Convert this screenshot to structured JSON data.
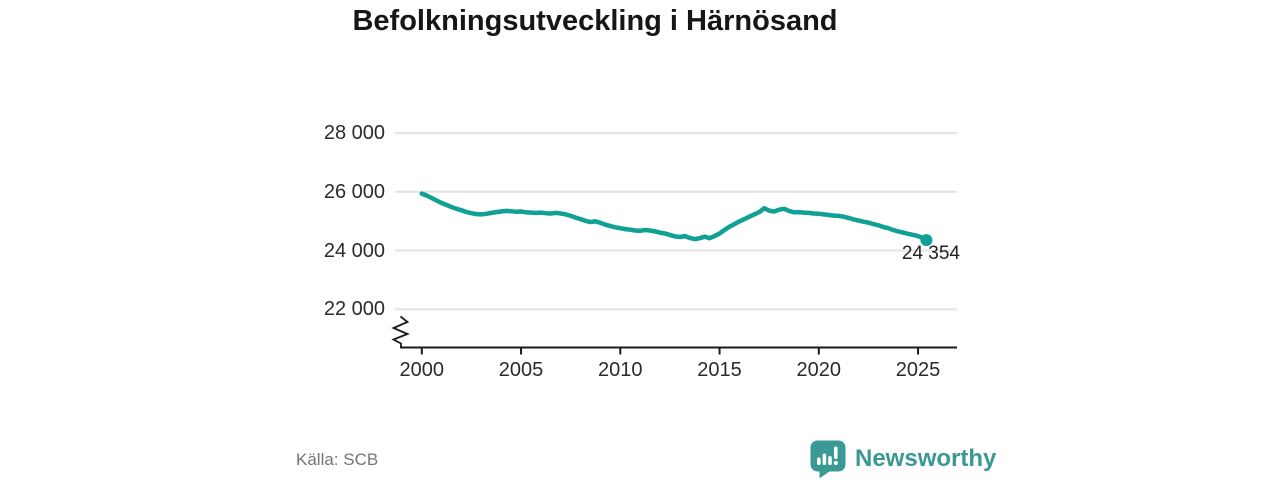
{
  "title": "Befolkningsutveckling i Härnösand",
  "chart_data": {
    "type": "line",
    "title": "Befolkningsutveckling i Härnösand",
    "xlabel": "",
    "ylabel": "",
    "x_ticks": [
      {
        "value": 2000,
        "label": "2000"
      },
      {
        "value": 2005,
        "label": "2005"
      },
      {
        "value": 2010,
        "label": "2010"
      },
      {
        "value": 2015,
        "label": "2015"
      },
      {
        "value": 2020,
        "label": "2020"
      },
      {
        "value": 2025,
        "label": "2025"
      }
    ],
    "y_ticks": [
      {
        "value": 28000,
        "label": "28 000"
      },
      {
        "value": 26000,
        "label": "26 000"
      },
      {
        "value": 24000,
        "label": "24 000"
      },
      {
        "value": 22000,
        "label": "22 000"
      }
    ],
    "y_axis_break": true,
    "grid": true,
    "ylim": [
      22000,
      28000
    ],
    "xlim": [
      2000,
      2025.5
    ],
    "latest_value": 24354,
    "latest_value_label": "24 354",
    "series": [
      {
        "name": "Härnösand",
        "points": [
          [
            2000,
            25940
          ],
          [
            2000.25,
            25870
          ],
          [
            2000.5,
            25790
          ],
          [
            2000.75,
            25700
          ],
          [
            2001,
            25620
          ],
          [
            2001.25,
            25550
          ],
          [
            2001.5,
            25480
          ],
          [
            2001.75,
            25420
          ],
          [
            2002,
            25370
          ],
          [
            2002.25,
            25310
          ],
          [
            2002.5,
            25270
          ],
          [
            2002.75,
            25240
          ],
          [
            2003,
            25230
          ],
          [
            2003.25,
            25250
          ],
          [
            2003.5,
            25280
          ],
          [
            2003.75,
            25310
          ],
          [
            2004,
            25330
          ],
          [
            2004.25,
            25350
          ],
          [
            2004.5,
            25340
          ],
          [
            2004.75,
            25320
          ],
          [
            2005,
            25330
          ],
          [
            2005.25,
            25300
          ],
          [
            2005.5,
            25290
          ],
          [
            2005.75,
            25280
          ],
          [
            2006,
            25290
          ],
          [
            2006.25,
            25270
          ],
          [
            2006.5,
            25260
          ],
          [
            2006.75,
            25280
          ],
          [
            2007,
            25260
          ],
          [
            2007.25,
            25230
          ],
          [
            2007.5,
            25180
          ],
          [
            2007.75,
            25120
          ],
          [
            2008,
            25070
          ],
          [
            2008.25,
            25010
          ],
          [
            2008.5,
            24970
          ],
          [
            2008.75,
            24990
          ],
          [
            2009,
            24940
          ],
          [
            2009.25,
            24880
          ],
          [
            2009.5,
            24830
          ],
          [
            2009.75,
            24790
          ],
          [
            2010,
            24760
          ],
          [
            2010.25,
            24730
          ],
          [
            2010.5,
            24710
          ],
          [
            2010.75,
            24680
          ],
          [
            2011,
            24670
          ],
          [
            2011.25,
            24700
          ],
          [
            2011.5,
            24680
          ],
          [
            2011.75,
            24650
          ],
          [
            2012,
            24610
          ],
          [
            2012.25,
            24580
          ],
          [
            2012.5,
            24530
          ],
          [
            2012.75,
            24480
          ],
          [
            2013,
            24460
          ],
          [
            2013.25,
            24490
          ],
          [
            2013.5,
            24430
          ],
          [
            2013.75,
            24390
          ],
          [
            2014,
            24420
          ],
          [
            2014.25,
            24470
          ],
          [
            2014.5,
            24420
          ],
          [
            2014.75,
            24490
          ],
          [
            2015,
            24580
          ],
          [
            2015.25,
            24700
          ],
          [
            2015.5,
            24810
          ],
          [
            2015.75,
            24900
          ],
          [
            2016,
            24990
          ],
          [
            2016.25,
            25070
          ],
          [
            2016.5,
            25150
          ],
          [
            2016.75,
            25230
          ],
          [
            2017,
            25310
          ],
          [
            2017.25,
            25440
          ],
          [
            2017.5,
            25360
          ],
          [
            2017.75,
            25330
          ],
          [
            2018,
            25390
          ],
          [
            2018.25,
            25420
          ],
          [
            2018.5,
            25350
          ],
          [
            2018.75,
            25300
          ],
          [
            2019,
            25310
          ],
          [
            2019.25,
            25290
          ],
          [
            2019.5,
            25280
          ],
          [
            2019.75,
            25260
          ],
          [
            2020,
            25250
          ],
          [
            2020.25,
            25230
          ],
          [
            2020.5,
            25210
          ],
          [
            2020.75,
            25190
          ],
          [
            2021,
            25180
          ],
          [
            2021.25,
            25150
          ],
          [
            2021.5,
            25110
          ],
          [
            2021.75,
            25060
          ],
          [
            2022,
            25020
          ],
          [
            2022.25,
            24980
          ],
          [
            2022.5,
            24950
          ],
          [
            2022.75,
            24900
          ],
          [
            2023,
            24860
          ],
          [
            2023.25,
            24800
          ],
          [
            2023.5,
            24760
          ],
          [
            2023.75,
            24700
          ],
          [
            2024,
            24650
          ],
          [
            2024.25,
            24610
          ],
          [
            2024.5,
            24570
          ],
          [
            2024.75,
            24530
          ],
          [
            2025,
            24490
          ],
          [
            2025.25,
            24430
          ],
          [
            2025.42,
            24354
          ]
        ]
      }
    ],
    "legend": null
  },
  "footer": {
    "source": "Källa: SCB",
    "logo_text": "Newsworthy"
  },
  "colors": {
    "line": "#10A094",
    "logo": "#3A9A93",
    "grid": "#E3E3E3",
    "axis": "#1A1A1A",
    "text": "#2B2B2B",
    "muted": "#757575",
    "title": "#161616"
  }
}
